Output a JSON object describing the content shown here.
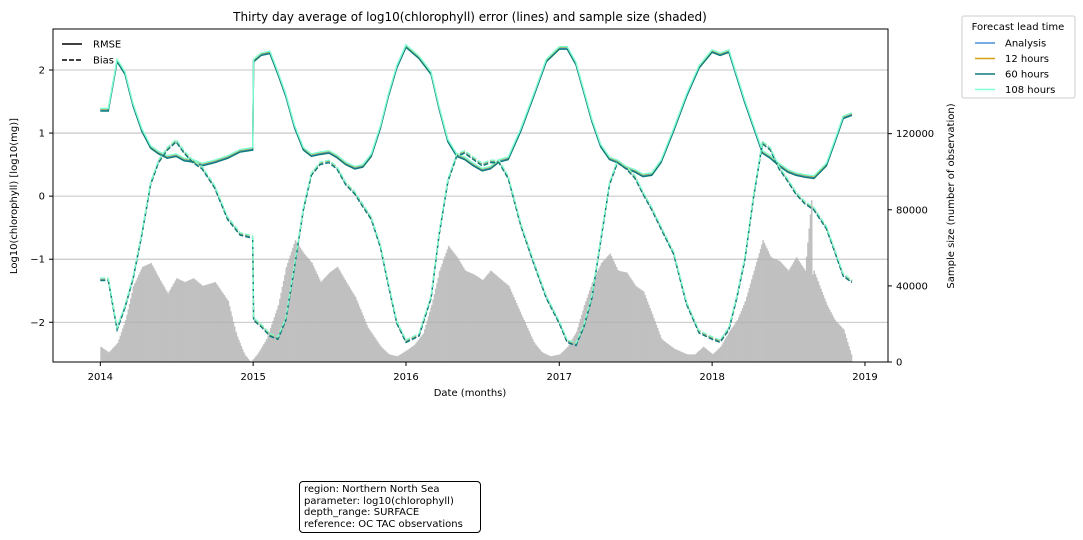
{
  "chart_data": {
    "type": "line",
    "title": "Thirty day average of log10(chlorophyll) error (lines) and sample size (shaded)",
    "xlabel": "Date (months)",
    "ylabel": "Log10(chlorophyll) [log10(mg)]",
    "y2label": "Sample size (number of observation)",
    "xlim": [
      "2013-09-10",
      "2019-02-25"
    ],
    "ylim": [
      -2.63,
      2.65
    ],
    "y2lim": [
      0,
      175000
    ],
    "x_ticks": [
      "2014-01-01",
      "2015-01-01",
      "2016-01-01",
      "2017-01-01",
      "2018-01-01",
      "2019-01-01"
    ],
    "x_tick_labels": [
      "2014",
      "2015",
      "2016",
      "2017",
      "2018",
      "2019"
    ],
    "y_ticks": [
      -2,
      -1,
      0,
      1,
      2
    ],
    "y_tick_labels": [
      "−2",
      "−1",
      "0",
      "1",
      "2"
    ],
    "y2_ticks": [
      0,
      40000,
      80000,
      120000
    ],
    "y2_tick_labels": [
      "0",
      "40000",
      "80000",
      "120000"
    ],
    "grid": "horizontal",
    "style_legend": {
      "placement": "top-left",
      "entries": [
        {
          "label": "RMSE",
          "dash": "solid"
        },
        {
          "label": "Bias",
          "dash": "dashed"
        }
      ]
    },
    "legend": {
      "title": "Forecast lead time",
      "placement": "outside-right",
      "entries": [
        {
          "label": "Analysis",
          "color": "#4a90d9"
        },
        {
          "label": "12 hours",
          "color": "#d4a017"
        },
        {
          "label": "60 hours",
          "color": "#0e7a7a"
        },
        {
          "label": "108 hours",
          "color": "#7fffd4"
        }
      ]
    },
    "rmse": {
      "x": [
        "2014-01-01",
        "2014-01-20",
        "2014-02-10",
        "2014-03-01",
        "2014-03-20",
        "2014-04-10",
        "2014-05-01",
        "2014-05-20",
        "2014-06-10",
        "2014-07-01",
        "2014-07-20",
        "2014-08-10",
        "2014-09-01",
        "2014-10-01",
        "2014-11-01",
        "2014-12-01",
        "2014-12-31",
        "2015-01-02",
        "2015-01-20",
        "2015-02-10",
        "2015-03-01",
        "2015-03-20",
        "2015-04-10",
        "2015-05-01",
        "2015-05-20",
        "2015-06-10",
        "2015-07-01",
        "2015-07-20",
        "2015-08-10",
        "2015-09-01",
        "2015-09-20",
        "2015-10-10",
        "2015-11-01",
        "2015-11-20",
        "2015-12-10",
        "2016-01-01",
        "2016-02-01",
        "2016-03-01",
        "2016-03-20",
        "2016-04-10",
        "2016-05-01",
        "2016-05-20",
        "2016-06-10",
        "2016-07-01",
        "2016-07-20",
        "2016-08-10",
        "2016-09-01",
        "2016-10-01",
        "2016-11-01",
        "2016-12-01",
        "2017-01-01",
        "2017-01-20",
        "2017-02-10",
        "2017-03-01",
        "2017-03-20",
        "2017-04-10",
        "2017-05-01",
        "2017-05-20",
        "2017-06-10",
        "2017-07-01",
        "2017-07-20",
        "2017-08-10",
        "2017-09-01",
        "2017-10-01",
        "2017-11-01",
        "2017-12-01",
        "2018-01-01",
        "2018-01-20",
        "2018-02-10",
        "2018-03-01",
        "2018-03-20",
        "2018-04-10",
        "2018-05-01",
        "2018-05-20",
        "2018-06-10",
        "2018-07-01",
        "2018-07-20",
        "2018-08-10",
        "2018-09-01",
        "2018-10-01",
        "2018-10-20",
        "2018-11-10",
        "2018-12-01"
      ],
      "values": [
        1.37,
        1.37,
        2.15,
        1.95,
        1.45,
        1.05,
        0.78,
        0.69,
        0.62,
        0.65,
        0.58,
        0.56,
        0.5,
        0.55,
        0.62,
        0.72,
        0.75,
        2.15,
        2.25,
        2.28,
        1.95,
        1.6,
        1.1,
        0.75,
        0.65,
        0.68,
        0.7,
        0.63,
        0.52,
        0.45,
        0.48,
        0.65,
        1.1,
        1.6,
        2.05,
        2.38,
        2.2,
        1.95,
        1.4,
        0.88,
        0.65,
        0.6,
        0.5,
        0.42,
        0.45,
        0.56,
        0.6,
        1.05,
        1.6,
        2.15,
        2.35,
        2.35,
        2.1,
        1.65,
        1.2,
        0.8,
        0.6,
        0.55,
        0.45,
        0.4,
        0.33,
        0.35,
        0.55,
        1.05,
        1.6,
        2.05,
        2.3,
        2.25,
        2.3,
        1.9,
        1.5,
        1.1,
        0.7,
        0.62,
        0.5,
        0.4,
        0.35,
        0.32,
        0.3,
        0.5,
        0.85,
        1.25,
        1.3
      ]
    },
    "bias": {
      "x": [
        "2014-01-01",
        "2014-01-20",
        "2014-02-10",
        "2014-03-01",
        "2014-03-20",
        "2014-04-10",
        "2014-05-01",
        "2014-05-20",
        "2014-06-10",
        "2014-07-01",
        "2014-07-20",
        "2014-08-10",
        "2014-09-01",
        "2014-10-01",
        "2014-11-01",
        "2014-12-01",
        "2014-12-31",
        "2015-01-02",
        "2015-01-20",
        "2015-02-10",
        "2015-03-01",
        "2015-03-20",
        "2015-04-10",
        "2015-05-01",
        "2015-05-20",
        "2015-06-10",
        "2015-07-01",
        "2015-07-20",
        "2015-08-10",
        "2015-09-01",
        "2015-09-20",
        "2015-10-10",
        "2015-11-01",
        "2015-11-20",
        "2015-12-10",
        "2016-01-01",
        "2016-02-01",
        "2016-03-01",
        "2016-03-20",
        "2016-04-10",
        "2016-05-01",
        "2016-05-20",
        "2016-06-10",
        "2016-07-01",
        "2016-07-20",
        "2016-08-10",
        "2016-09-01",
        "2016-10-01",
        "2016-11-01",
        "2016-12-01",
        "2017-01-01",
        "2017-01-20",
        "2017-02-10",
        "2017-03-01",
        "2017-03-20",
        "2017-04-10",
        "2017-05-01",
        "2017-05-20",
        "2017-06-10",
        "2017-07-01",
        "2017-07-20",
        "2017-08-10",
        "2017-09-01",
        "2017-10-01",
        "2017-11-01",
        "2017-12-01",
        "2018-01-01",
        "2018-01-20",
        "2018-02-10",
        "2018-03-01",
        "2018-03-20",
        "2018-04-10",
        "2018-05-01",
        "2018-05-20",
        "2018-06-10",
        "2018-07-01",
        "2018-07-20",
        "2018-08-10",
        "2018-09-01",
        "2018-10-01",
        "2018-10-20",
        "2018-11-10",
        "2018-12-01"
      ],
      "values": [
        -1.32,
        -1.32,
        -2.1,
        -1.75,
        -1.3,
        -0.6,
        0.2,
        0.55,
        0.75,
        0.88,
        0.7,
        0.55,
        0.45,
        0.15,
        -0.35,
        -0.6,
        -0.65,
        -1.95,
        -2.05,
        -2.2,
        -2.25,
        -1.95,
        -1.1,
        -0.2,
        0.35,
        0.52,
        0.55,
        0.45,
        0.2,
        0.05,
        -0.15,
        -0.35,
        -0.8,
        -1.4,
        -2.0,
        -2.3,
        -2.2,
        -1.6,
        -0.6,
        0.25,
        0.65,
        0.7,
        0.6,
        0.5,
        0.55,
        0.55,
        0.3,
        -0.45,
        -1.05,
        -1.6,
        -2.0,
        -2.3,
        -2.35,
        -2.05,
        -1.6,
        -0.7,
        0.2,
        0.55,
        0.45,
        0.3,
        0.05,
        -0.2,
        -0.5,
        -0.9,
        -1.7,
        -2.15,
        -2.25,
        -2.3,
        -2.1,
        -1.6,
        -1.0,
        0.0,
        0.85,
        0.75,
        0.45,
        0.25,
        0.05,
        -0.1,
        -0.2,
        -0.5,
        -0.85,
        -1.25,
        -1.35
      ]
    },
    "sample_size": {
      "x": [
        "2014-01-01",
        "2014-01-20",
        "2014-02-10",
        "2014-03-01",
        "2014-03-20",
        "2014-04-10",
        "2014-05-01",
        "2014-05-20",
        "2014-06-10",
        "2014-07-01",
        "2014-07-20",
        "2014-08-10",
        "2014-09-01",
        "2014-10-01",
        "2014-11-01",
        "2014-11-20",
        "2014-12-10",
        "2014-12-25",
        "2015-01-10",
        "2015-02-01",
        "2015-03-01",
        "2015-03-20",
        "2015-04-10",
        "2015-05-01",
        "2015-05-20",
        "2015-06-10",
        "2015-07-01",
        "2015-07-20",
        "2015-08-10",
        "2015-09-01",
        "2015-10-01",
        "2015-11-01",
        "2015-11-20",
        "2015-12-10",
        "2016-01-01",
        "2016-01-20",
        "2016-02-10",
        "2016-03-01",
        "2016-03-20",
        "2016-04-10",
        "2016-05-01",
        "2016-05-20",
        "2016-06-10",
        "2016-07-01",
        "2016-07-20",
        "2016-08-10",
        "2016-09-01",
        "2016-10-01",
        "2016-11-01",
        "2016-11-20",
        "2016-12-10",
        "2017-01-01",
        "2017-01-20",
        "2017-02-10",
        "2017-03-01",
        "2017-03-20",
        "2017-04-10",
        "2017-05-01",
        "2017-05-20",
        "2017-06-10",
        "2017-07-01",
        "2017-07-20",
        "2017-08-10",
        "2017-09-01",
        "2017-10-01",
        "2017-11-01",
        "2017-11-20",
        "2017-12-10",
        "2018-01-01",
        "2018-01-20",
        "2018-02-10",
        "2018-03-01",
        "2018-03-20",
        "2018-04-10",
        "2018-05-01",
        "2018-05-20",
        "2018-06-10",
        "2018-07-01",
        "2018-07-20",
        "2018-08-10",
        "2018-08-25",
        "2018-08-28",
        "2018-08-31",
        "2018-09-10",
        "2018-10-01",
        "2018-10-20",
        "2018-11-10",
        "2018-11-28",
        "2018-12-01"
      ],
      "values": [
        8000,
        5000,
        10000,
        22000,
        40000,
        50000,
        52000,
        44000,
        36000,
        44000,
        42000,
        44000,
        40000,
        42000,
        32000,
        15000,
        4000,
        0,
        4000,
        12000,
        30000,
        50000,
        64000,
        57000,
        52000,
        42000,
        47000,
        50000,
        42000,
        34000,
        18000,
        8000,
        4000,
        3000,
        6000,
        9000,
        15000,
        30000,
        48000,
        61000,
        55000,
        48000,
        46000,
        43000,
        48000,
        44000,
        40000,
        25000,
        10000,
        5000,
        3000,
        4000,
        8000,
        16000,
        30000,
        42000,
        52000,
        57000,
        48000,
        47000,
        40000,
        37000,
        25000,
        12000,
        7000,
        4000,
        4000,
        8000,
        4000,
        8000,
        16000,
        22000,
        32000,
        48000,
        64000,
        55000,
        53000,
        48000,
        55000,
        48000,
        85000,
        46000,
        48000,
        42000,
        30000,
        22000,
        17000,
        4000,
        0
      ]
    },
    "series": [
      {
        "name": "Analysis",
        "color": "#4a90d9"
      },
      {
        "name": "12 hours",
        "color": "#d4a017"
      },
      {
        "name": "60 hours",
        "color": "#0e7a7a"
      },
      {
        "name": "108 hours",
        "color": "#7fffd4"
      }
    ]
  },
  "info_box": [
    "region: Northern North Sea",
    "parameter: log10(chlorophyll)",
    "depth_range: SURFACE",
    "reference: OC TAC observations"
  ]
}
